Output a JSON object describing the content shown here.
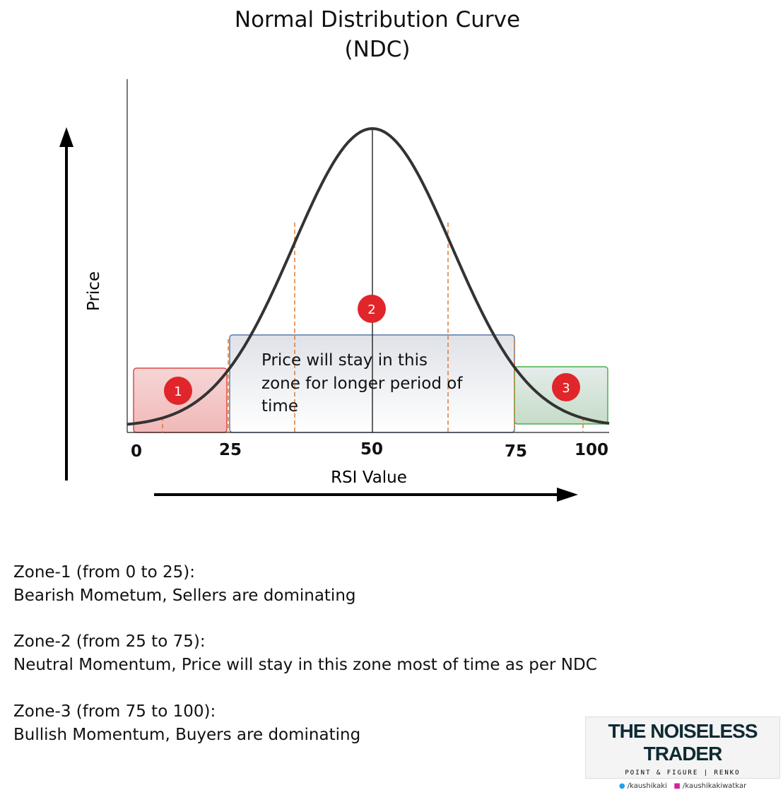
{
  "header": {
    "title": "Normal Distribution Curve",
    "subtitle": "(NDC)"
  },
  "axes": {
    "y_label": "Price",
    "x_label": "RSI Value",
    "x_ticks": [
      "0",
      "25",
      "50",
      "75",
      "100"
    ]
  },
  "zones": [
    {
      "marker": "1"
    },
    {
      "marker": "2",
      "callout": [
        "Price will stay in this",
        "zone for longer period of",
        "time"
      ]
    },
    {
      "marker": "3"
    }
  ],
  "notes": [
    {
      "heading": "Zone-1 (from 0 to 25):",
      "text": "Bearish Mometum, Sellers are dominating"
    },
    {
      "heading": "Zone-2 (from 25 to 75):",
      "text": "Neutral Momentum, Price will stay in this zone most of time as per NDC"
    },
    {
      "heading": "Zone-3 (from 75 to 100):",
      "text": "Bullish Momentum, Buyers are dominating"
    }
  ],
  "brand": {
    "name": "THE NOISELESS TRADER",
    "tagline": "POINT & FIGURE | RENKO",
    "twitter": "/kaushikaki",
    "instagram": "/kaushikakiwatkar"
  }
}
